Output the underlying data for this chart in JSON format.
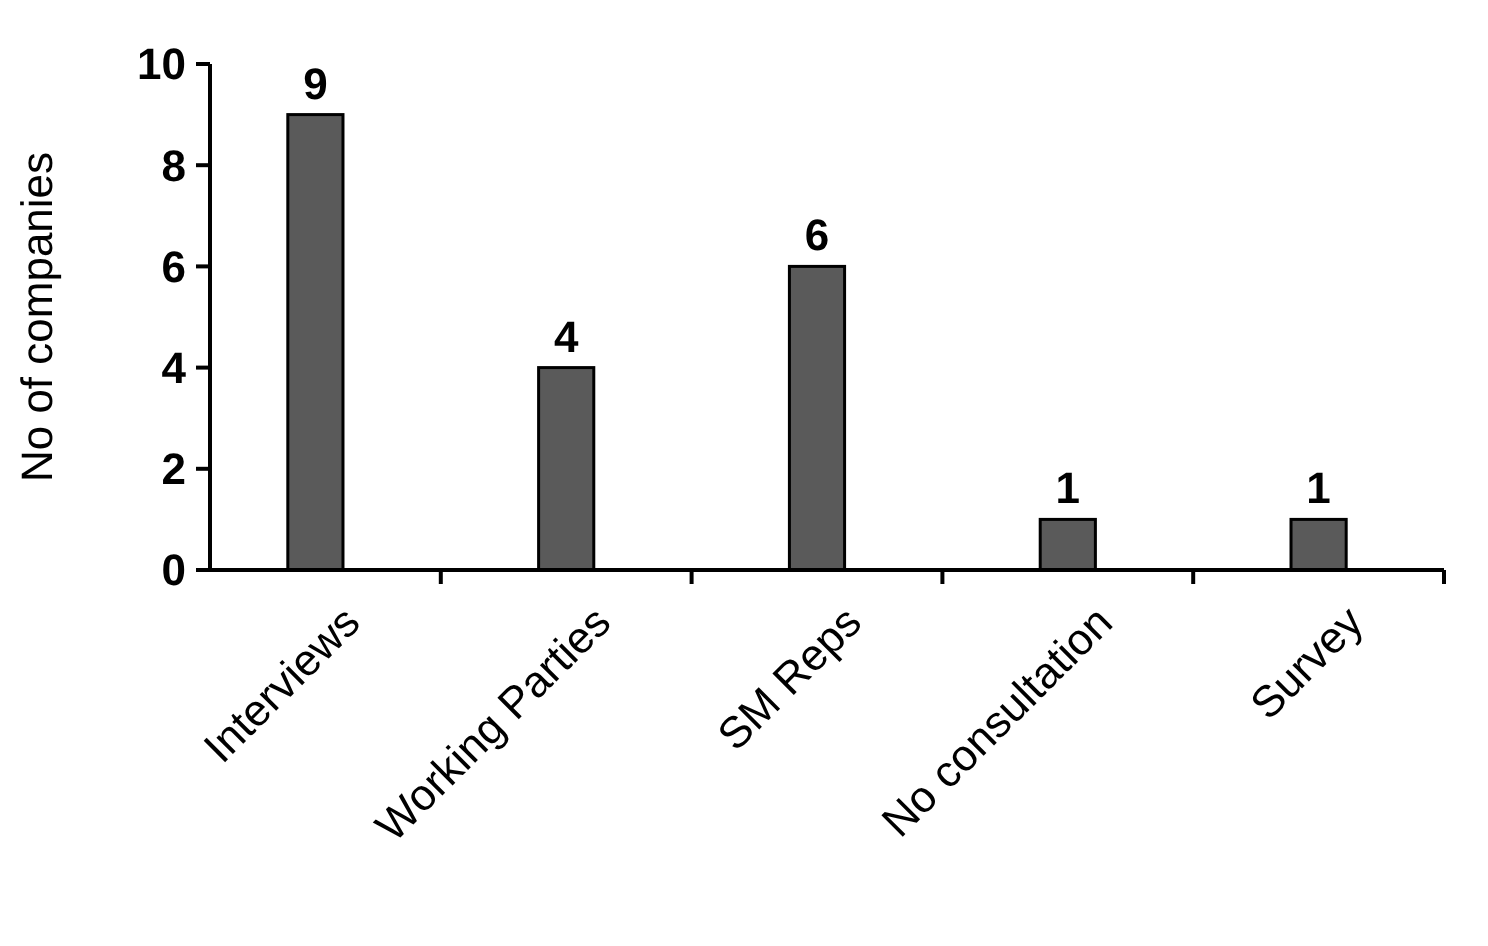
{
  "chart_data": {
    "type": "bar",
    "ylabel": "No of companies",
    "categories": [
      "Interviews",
      "Working Parties",
      "SM Reps",
      "No consultation",
      "Survey"
    ],
    "values": [
      9,
      4,
      6,
      1,
      1
    ],
    "color": "#5a5a5a",
    "ylim": [
      0,
      10
    ],
    "yticks": [
      0,
      2,
      4,
      6,
      8,
      10
    ],
    "data_labels": true
  }
}
